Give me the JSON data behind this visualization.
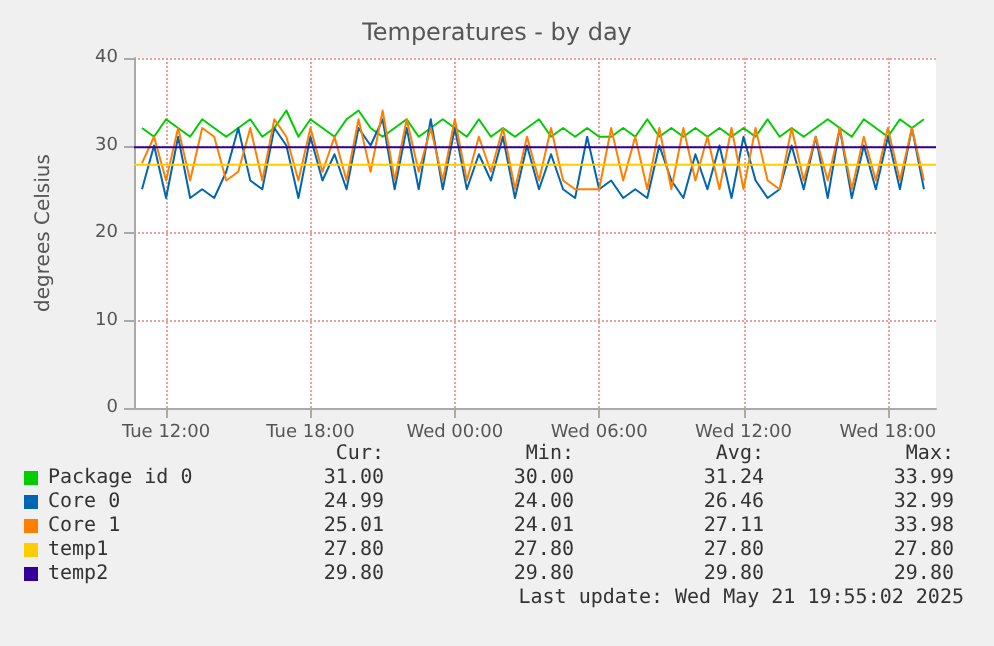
{
  "chart_data": {
    "type": "line",
    "title": "Temperatures - by day",
    "ylabel": "degrees Celsius",
    "x": [
      "2025-05-20T11:00",
      "2025-05-20T11:30",
      "2025-05-20T12:00",
      "2025-05-20T12:30",
      "2025-05-20T13:00",
      "2025-05-20T13:30",
      "2025-05-20T14:00",
      "2025-05-20T14:30",
      "2025-05-20T15:00",
      "2025-05-20T15:30",
      "2025-05-20T16:00",
      "2025-05-20T16:30",
      "2025-05-20T17:00",
      "2025-05-20T17:30",
      "2025-05-20T18:00",
      "2025-05-20T18:30",
      "2025-05-20T19:00",
      "2025-05-20T19:30",
      "2025-05-20T20:00",
      "2025-05-20T20:30",
      "2025-05-20T21:00",
      "2025-05-20T21:30",
      "2025-05-20T22:00",
      "2025-05-20T22:30",
      "2025-05-20T23:00",
      "2025-05-20T23:30",
      "2025-05-21T00:00",
      "2025-05-21T00:30",
      "2025-05-21T01:00",
      "2025-05-21T01:30",
      "2025-05-21T02:00",
      "2025-05-21T02:30",
      "2025-05-21T03:00",
      "2025-05-21T03:30",
      "2025-05-21T04:00",
      "2025-05-21T04:30",
      "2025-05-21T05:00",
      "2025-05-21T05:30",
      "2025-05-21T06:00",
      "2025-05-21T06:30",
      "2025-05-21T07:00",
      "2025-05-21T07:30",
      "2025-05-21T08:00",
      "2025-05-21T08:30",
      "2025-05-21T09:00",
      "2025-05-21T09:30",
      "2025-05-21T10:00",
      "2025-05-21T10:30",
      "2025-05-21T11:00",
      "2025-05-21T11:30",
      "2025-05-21T12:00",
      "2025-05-21T12:30",
      "2025-05-21T13:00",
      "2025-05-21T13:30",
      "2025-05-21T14:00",
      "2025-05-21T14:30",
      "2025-05-21T15:00",
      "2025-05-21T15:30",
      "2025-05-21T16:00",
      "2025-05-21T16:30",
      "2025-05-21T17:00",
      "2025-05-21T17:30",
      "2025-05-21T18:00",
      "2025-05-21T18:30",
      "2025-05-21T19:00",
      "2025-05-21T19:30"
    ],
    "series": [
      {
        "name": "Package id 0",
        "color": "#00cc00",
        "values": [
          32,
          31,
          33,
          32,
          31,
          33,
          32,
          31,
          32,
          33,
          31,
          32,
          34,
          31,
          33,
          32,
          31,
          33,
          34,
          32,
          31,
          32,
          33,
          31,
          32,
          33,
          32,
          31,
          33,
          31,
          32,
          31,
          32,
          33,
          31,
          32,
          31,
          32,
          31,
          31,
          32,
          31,
          33,
          31,
          32,
          31,
          32,
          31,
          32,
          31,
          32,
          31,
          33,
          31,
          32,
          31,
          32,
          33,
          32,
          31,
          33,
          32,
          31,
          33,
          32,
          33
        ]
      },
      {
        "name": "Core 0",
        "color": "#0066b3",
        "values": [
          25,
          30,
          24,
          31,
          24,
          25,
          24,
          27,
          32,
          26,
          25,
          32,
          30,
          24,
          31,
          26,
          29,
          25,
          32,
          30,
          33,
          25,
          32,
          25,
          33,
          25,
          32,
          25,
          29,
          26,
          31,
          24,
          30,
          25,
          29,
          25,
          24,
          31,
          25,
          26,
          24,
          25,
          24,
          30,
          26,
          24,
          29,
          25,
          30,
          24,
          31,
          26,
          24,
          25,
          30,
          25,
          31,
          24,
          32,
          24,
          30,
          25,
          31,
          25,
          32,
          25
        ]
      },
      {
        "name": "Core 1",
        "color": "#ff8000",
        "values": [
          28,
          31,
          26,
          32,
          26,
          32,
          31,
          26,
          27,
          32,
          26,
          33,
          31,
          26,
          32,
          27,
          31,
          26,
          33,
          27,
          34,
          26,
          33,
          27,
          32,
          26,
          33,
          26,
          31,
          27,
          32,
          25,
          31,
          26,
          32,
          26,
          25,
          25,
          25,
          32,
          26,
          31,
          25,
          32,
          25,
          32,
          26,
          31,
          25,
          32,
          25,
          32,
          26,
          25,
          32,
          26,
          31,
          26,
          32,
          25,
          31,
          26,
          32,
          26,
          32,
          26
        ]
      },
      {
        "name": "temp1",
        "color": "#ffcc00",
        "x": [
          "2025-05-20T10:40",
          "2025-05-21T20:00"
        ],
        "values": [
          27.8,
          27.8
        ]
      },
      {
        "name": "temp2",
        "color": "#330099",
        "x": [
          "2025-05-20T10:40",
          "2025-05-21T20:00"
        ],
        "values": [
          29.8,
          29.8
        ]
      }
    ],
    "xlim": [
      "2025-05-20T10:40",
      "2025-05-21T20:00"
    ],
    "xticks": [
      {
        "value": "2025-05-20T12:00",
        "label": "Tue 12:00"
      },
      {
        "value": "2025-05-20T18:00",
        "label": "Tue 18:00"
      },
      {
        "value": "2025-05-21T00:00",
        "label": "Wed 00:00"
      },
      {
        "value": "2025-05-21T06:00",
        "label": "Wed 06:00"
      },
      {
        "value": "2025-05-21T12:00",
        "label": "Wed 12:00"
      },
      {
        "value": "2025-05-21T18:00",
        "label": "Wed 18:00"
      }
    ],
    "ylim": [
      0,
      40
    ],
    "yticks": [
      0,
      10,
      20,
      30,
      40
    ],
    "grid": true,
    "legend": "bottom",
    "marker": "none",
    "line_style": "solid",
    "annotations": [
      "Cur:",
      "Min:",
      "Avg:",
      "Max:",
      "31.00",
      "30.00",
      "31.24",
      "33.99",
      "24.99",
      "24.00",
      "26.46",
      "32.99",
      "25.01",
      "24.01",
      "27.11",
      "33.98",
      "27.80",
      "27.80",
      "27.80",
      "27.80",
      "29.80",
      "29.80",
      "29.80",
      "29.80",
      "Last update: Wed May 21 19:55:02 2025"
    ]
  }
}
